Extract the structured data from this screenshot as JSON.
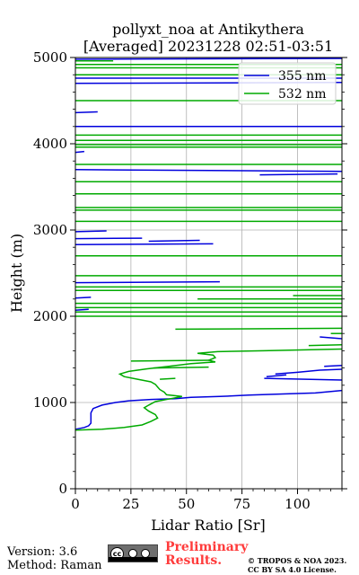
{
  "chart_data": {
    "type": "line",
    "title": "pollyxt_noa at Antikythera",
    "subtitle": "[Averaged] 20231228 02:51-03:51",
    "xlabel": "Lidar Ratio [Sr]",
    "ylabel": "Height (m)",
    "xlim": [
      0,
      120
    ],
    "ylim": [
      0,
      5000
    ],
    "xticks": [
      0,
      25,
      50,
      75,
      100
    ],
    "yticks": [
      0,
      1000,
      2000,
      3000,
      4000,
      5000
    ],
    "grid": true,
    "legend_position": "top-right",
    "colors": {
      "355": "#0000dd",
      "532": "#00aa00"
    },
    "series": [
      {
        "name": "355 nm",
        "color": "#0000dd",
        "points": [
          [
            0,
            690
          ],
          [
            4,
            710
          ],
          [
            6,
            730
          ],
          [
            7,
            760
          ],
          [
            7,
            820
          ],
          [
            7,
            880
          ],
          [
            8,
            930
          ],
          [
            12,
            970
          ],
          [
            18,
            1000
          ],
          [
            24,
            1020
          ],
          [
            34,
            1035
          ],
          [
            45,
            1045
          ],
          [
            52,
            1060
          ],
          [
            65,
            1070
          ],
          [
            78,
            1085
          ],
          [
            95,
            1100
          ],
          [
            108,
            1110
          ],
          [
            120,
            1140
          ]
        ],
        "segments": [
          [
            [
              85,
              1280
            ],
            [
              120,
              1260
            ]
          ],
          [
            [
              86,
              1300
            ],
            [
              95,
              1320
            ]
          ],
          [
            [
              90,
              1330
            ],
            [
              100,
              1350
            ],
            [
              110,
              1375
            ],
            [
              120,
              1385
            ]
          ],
          [
            [
              112,
              1420
            ],
            [
              120,
              1430
            ]
          ],
          [
            [
              120,
              1740
            ],
            [
              110,
              1760
            ]
          ],
          [
            [
              0,
              2070
            ],
            [
              6,
              2080
            ]
          ],
          [
            [
              0,
              2210
            ],
            [
              7,
              2220
            ]
          ],
          [
            [
              0,
              2390
            ],
            [
              65,
              2400
            ]
          ],
          [
            [
              0,
              2830
            ],
            [
              62,
              2840
            ]
          ],
          [
            [
              33,
              2870
            ],
            [
              56,
              2880
            ]
          ],
          [
            [
              0,
              2900
            ],
            [
              30,
              2905
            ]
          ],
          [
            [
              0,
              2980
            ],
            [
              14,
              2990
            ]
          ],
          [
            [
              0,
              3700
            ],
            [
              120,
              3680
            ]
          ],
          [
            [
              83,
              3640
            ],
            [
              118,
              3650
            ]
          ],
          [
            [
              0,
              3900
            ],
            [
              4,
              3910
            ]
          ],
          [
            [
              0,
              4200
            ],
            [
              120,
              4200
            ]
          ],
          [
            [
              0,
              4360
            ],
            [
              10,
              4370
            ]
          ],
          [
            [
              0,
              4700
            ],
            [
              120,
              4710
            ]
          ],
          [
            [
              0,
              4760
            ],
            [
              120,
              4760
            ]
          ],
          [
            [
              0,
              4980
            ],
            [
              120,
              4990
            ]
          ]
        ]
      },
      {
        "name": "532 nm",
        "color": "#00aa00",
        "points": [
          [
            0,
            680
          ],
          [
            12,
            690
          ],
          [
            22,
            710
          ],
          [
            30,
            740
          ],
          [
            34,
            780
          ],
          [
            37,
            820
          ],
          [
            36,
            860
          ],
          [
            33,
            900
          ],
          [
            31,
            940
          ],
          [
            33,
            970
          ],
          [
            36,
            1010
          ],
          [
            42,
            1040
          ],
          [
            48,
            1070
          ],
          [
            41,
            1090
          ],
          [
            40,
            1120
          ],
          [
            38,
            1150
          ],
          [
            37,
            1180
          ],
          [
            36,
            1210
          ],
          [
            34,
            1240
          ],
          [
            28,
            1270
          ],
          [
            22,
            1300
          ],
          [
            20,
            1330
          ],
          [
            24,
            1360
          ],
          [
            32,
            1390
          ],
          [
            42,
            1420
          ],
          [
            52,
            1450
          ],
          [
            63,
            1470
          ],
          [
            60,
            1490
          ],
          [
            63,
            1520
          ],
          [
            62,
            1550
          ],
          [
            55,
            1570
          ],
          [
            64,
            1590
          ],
          [
            85,
            1600
          ],
          [
            120,
            1620
          ]
        ],
        "segments": [
          [
            [
              25,
              1480
            ],
            [
              60,
              1490
            ]
          ],
          [
            [
              35,
              1400
            ],
            [
              60,
              1410
            ]
          ],
          [
            [
              38,
              1270
            ],
            [
              45,
              1280
            ]
          ],
          [
            [
              105,
              1660
            ],
            [
              120,
              1670
            ]
          ],
          [
            [
              45,
              1850
            ],
            [
              120,
              1860
            ]
          ],
          [
            [
              115,
              1800
            ],
            [
              120,
              1800
            ]
          ],
          [
            [
              0,
              2000
            ],
            [
              120,
              2000
            ]
          ],
          [
            [
              0,
              2050
            ],
            [
              120,
              2050
            ]
          ],
          [
            [
              0,
              2100
            ],
            [
              120,
              2100
            ]
          ],
          [
            [
              0,
              2150
            ],
            [
              120,
              2150
            ]
          ],
          [
            [
              55,
              2200
            ],
            [
              120,
              2200
            ]
          ],
          [
            [
              98,
              2240
            ],
            [
              120,
              2240
            ]
          ],
          [
            [
              0,
              2300
            ],
            [
              120,
              2300
            ]
          ],
          [
            [
              0,
              2340
            ],
            [
              120,
              2340
            ]
          ],
          [
            [
              0,
              2470
            ],
            [
              120,
              2470
            ]
          ],
          [
            [
              0,
              2700
            ],
            [
              120,
              2700
            ]
          ],
          [
            [
              0,
              3100
            ],
            [
              120,
              3100
            ]
          ],
          [
            [
              0,
              3230
            ],
            [
              120,
              3230
            ]
          ],
          [
            [
              0,
              3260
            ],
            [
              120,
              3260
            ]
          ],
          [
            [
              0,
              3420
            ],
            [
              120,
              3420
            ]
          ],
          [
            [
              0,
              3560
            ],
            [
              120,
              3560
            ]
          ],
          [
            [
              0,
              3760
            ],
            [
              120,
              3760
            ]
          ],
          [
            [
              0,
              3960
            ],
            [
              120,
              3960
            ]
          ],
          [
            [
              0,
              3990
            ],
            [
              120,
              3990
            ]
          ],
          [
            [
              0,
              4040
            ],
            [
              120,
              4040
            ]
          ],
          [
            [
              0,
              4100
            ],
            [
              120,
              4100
            ]
          ],
          [
            [
              0,
              4500
            ],
            [
              120,
              4500
            ]
          ],
          [
            [
              0,
              4800
            ],
            [
              120,
              4800
            ]
          ],
          [
            [
              0,
              4880
            ],
            [
              120,
              4880
            ]
          ],
          [
            [
              0,
              4920
            ],
            [
              120,
              4920
            ]
          ],
          [
            [
              0,
              4960
            ],
            [
              17,
              4960
            ]
          ]
        ]
      }
    ]
  },
  "footer": {
    "version": "Version: 3.6",
    "method": "Method: Raman",
    "preliminary_line1": "Preliminary",
    "preliminary_line2": "Results.",
    "copyright_line1": "© TROPOS & NOA 2023.",
    "copyright_line2": "CC BY SA 4.0 License.",
    "license_badge": "cc-by-sa-badge"
  }
}
